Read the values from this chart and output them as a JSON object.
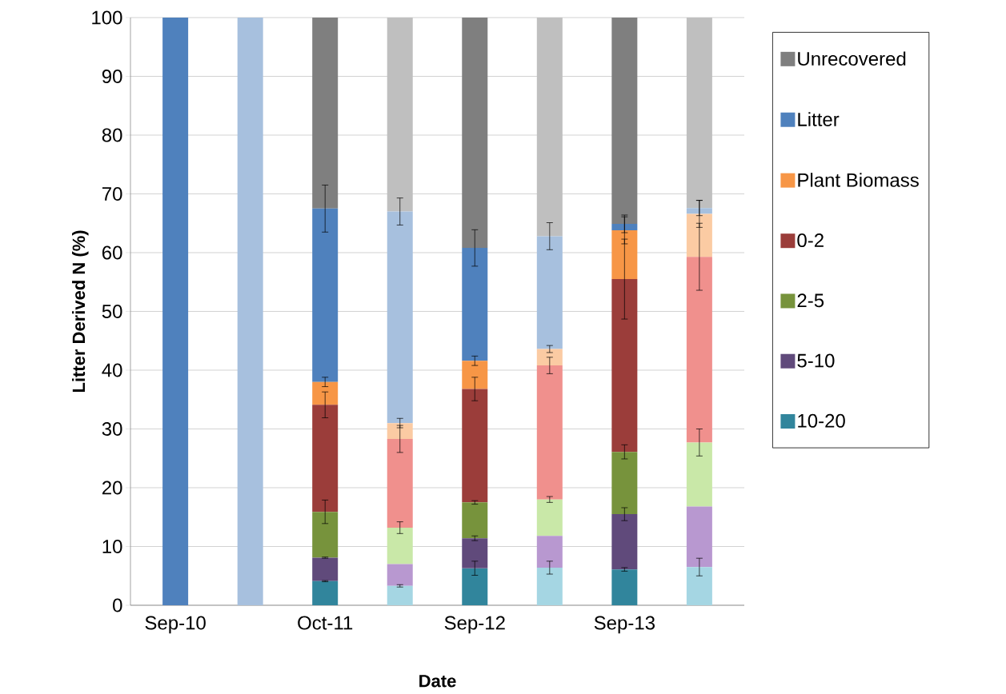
{
  "chart_data": {
    "type": "bar",
    "stacked": true,
    "xlabel": "Date",
    "ylabel": "Litter Derived N (%)",
    "categories": [
      "Sep-10",
      null,
      "Oct-11",
      null,
      "Sep-12",
      null,
      "Sep-13",
      null
    ],
    "ylim": [
      0,
      100
    ],
    "yticks": [
      0,
      10,
      20,
      30,
      40,
      50,
      60,
      70,
      80,
      90,
      100
    ],
    "grid": "y",
    "legend": "right",
    "series": [
      {
        "name": "10-20",
        "color": "#31859c",
        "values": [
          0,
          null,
          4.1,
          null,
          6.3,
          null,
          6.1,
          null
        ],
        "errors": [
          null,
          null,
          0.1,
          null,
          1.2,
          null,
          0.3,
          null
        ]
      },
      {
        "name": "5-10",
        "color": "#604a7b",
        "values": [
          0,
          null,
          4.0,
          null,
          5.1,
          null,
          9.4,
          null
        ],
        "errors": [
          null,
          null,
          0.1,
          null,
          0.4,
          null,
          1.1,
          null
        ]
      },
      {
        "name": "2-5",
        "color": "#77933c",
        "values": [
          0,
          null,
          7.8,
          null,
          6.1,
          null,
          10.6,
          null
        ],
        "errors": [
          null,
          null,
          2,
          null,
          0.3,
          null,
          1.2,
          null
        ]
      },
      {
        "name": "0-2",
        "color": "#9b3d3a",
        "values": [
          0,
          null,
          18.2,
          null,
          19.3,
          null,
          29.4,
          null
        ],
        "errors": [
          null,
          null,
          2.2,
          null,
          2,
          null,
          6.8,
          null
        ]
      },
      {
        "name": "Plant Biomass",
        "color": "#f79646",
        "values": [
          0,
          null,
          3.9,
          null,
          4.8,
          null,
          8.3,
          null
        ],
        "errors": [
          null,
          null,
          0.8,
          null,
          0.8,
          null,
          2.3,
          null
        ]
      },
      {
        "name": "Litter",
        "color": "#4f81bd",
        "values": [
          100,
          null,
          29.5,
          null,
          19.2,
          null,
          1.1,
          null
        ],
        "errors": [
          null,
          null,
          4,
          null,
          3.1,
          null,
          1.5,
          null
        ]
      },
      {
        "name": "Unrecovered",
        "color": "#7f7f7f",
        "values": [
          0,
          null,
          32.5,
          null,
          39.2,
          null,
          35.1,
          null
        ]
      },
      {
        "color": "#a5d6e3",
        "values": [
          null,
          0,
          null,
          3.3,
          null,
          6.4,
          null,
          6.5
        ],
        "errors": [
          null,
          null,
          null,
          0.2,
          null,
          1.1,
          null,
          1.5
        ]
      },
      {
        "color": "#b898d0",
        "values": [
          null,
          0,
          null,
          3.7,
          null,
          5.4,
          null,
          10.3
        ]
      },
      {
        "color": "#c9e8a8",
        "values": [
          null,
          0,
          null,
          6.2,
          null,
          6.2,
          null,
          10.9
        ],
        "errors": [
          null,
          null,
          null,
          1,
          null,
          0.5,
          null,
          2.3
        ]
      },
      {
        "color": "#f0908d",
        "values": [
          null,
          0,
          null,
          15.1,
          null,
          22.8,
          null,
          31.6
        ],
        "errors": [
          null,
          null,
          null,
          2.3,
          null,
          1.4,
          null,
          5.7
        ]
      },
      {
        "color": "#fbcba3",
        "values": [
          null,
          0,
          null,
          2.7,
          null,
          2.8,
          null,
          7.3
        ],
        "errors": [
          null,
          null,
          null,
          0.8,
          null,
          0.6,
          null,
          2.3
        ]
      },
      {
        "color": "#a7c0de",
        "values": [
          null,
          100,
          null,
          36,
          null,
          19.2,
          null,
          1.0
        ],
        "errors": [
          null,
          null,
          null,
          2.3,
          null,
          2.3,
          null,
          1.3
        ]
      },
      {
        "color": "#bfbfbf",
        "values": [
          null,
          0,
          null,
          33,
          null,
          37.2,
          null,
          32.4
        ]
      }
    ]
  }
}
